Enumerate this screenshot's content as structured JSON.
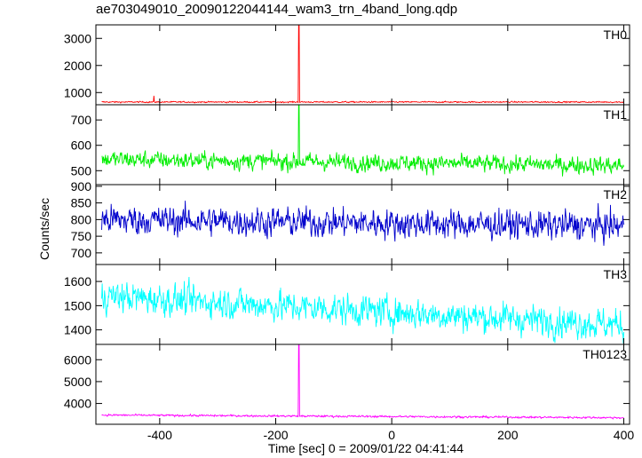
{
  "chart_data": {
    "type": "line",
    "title": "ae703049010_20090122044144_wam3_trn_4band_long.qdp",
    "xlabel": "Time [sec] 0 = 2009/01/22 04:41:44",
    "ylabel": "Counts/sec",
    "xlim": [
      -510,
      410
    ],
    "x_ticks": [
      -400,
      -200,
      0,
      200,
      400
    ],
    "grid": false,
    "panels": [
      {
        "name": "TH0",
        "color": "#ff0000",
        "ylim": [
          550,
          3500
        ],
        "y_ticks": [
          1000,
          2000,
          3000
        ],
        "baseline": 650,
        "noise": 25,
        "drift": 0,
        "spikes": [
          {
            "x": -160,
            "y": 3500
          },
          {
            "x": -410,
            "y": 880
          }
        ]
      },
      {
        "name": "TH1",
        "color": "#00ee00",
        "ylim": [
          445,
          760
        ],
        "y_ticks": [
          500,
          600,
          700
        ],
        "baseline": 545,
        "noise": 35,
        "drift": -25,
        "spikes": [
          {
            "x": -160,
            "y": 760
          }
        ]
      },
      {
        "name": "TH2",
        "color": "#0000cc",
        "ylim": [
          665,
          905
        ],
        "y_ticks": [
          700,
          750,
          800,
          850,
          900
        ],
        "baseline": 800,
        "noise": 45,
        "drift": -20,
        "spikes": []
      },
      {
        "name": "TH3",
        "color": "#00ffff",
        "ylim": [
          1340,
          1670
        ],
        "y_ticks": [
          1400,
          1500,
          1600
        ],
        "baseline": 1540,
        "noise": 65,
        "drift": -120,
        "spikes": []
      },
      {
        "name": "TH0123",
        "color": "#ff00ff",
        "ylim": [
          3050,
          6700
        ],
        "y_ticks": [
          4000,
          5000,
          6000
        ],
        "baseline": 3470,
        "noise": 45,
        "drift": -120,
        "spikes": [
          {
            "x": -160,
            "y": 6700
          }
        ]
      }
    ]
  }
}
